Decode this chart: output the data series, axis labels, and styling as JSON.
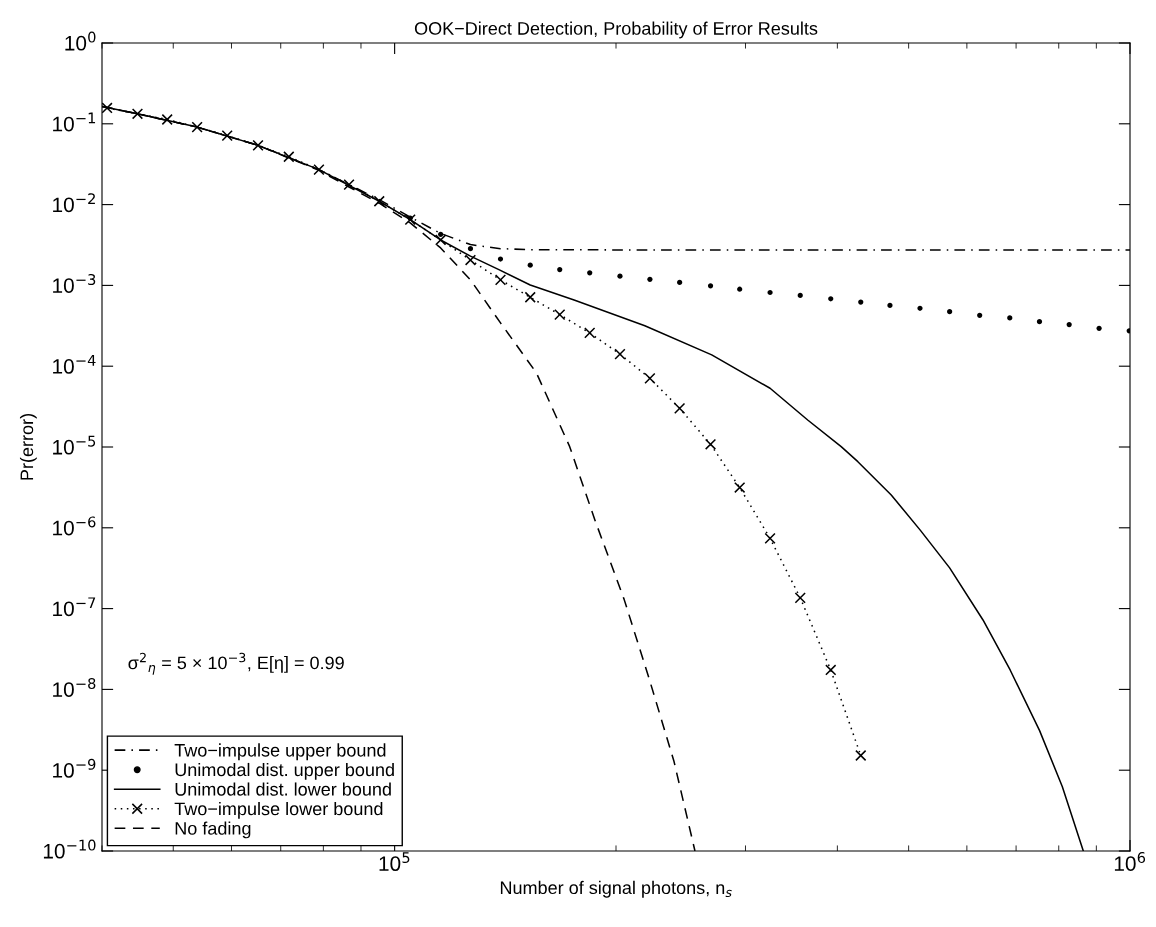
{
  "chart_data": {
    "type": "line",
    "title": "OOK−Direct Detection, Probability of Error Results",
    "xlabel": "Number of signal photons, n$_{s}$",
    "ylabel": "Pr(error)",
    "annotations": [
      "σ$^{2}$$_{η}$ = 5 × 10$^{−3}$, E[η] = 0.99"
    ],
    "log": "xy",
    "grid": false,
    "legend": "lower left",
    "xlim": [
      40000,
      1000000
    ],
    "xticks": [
      {
        "value": 100000,
        "label": "10$^{5}$"
      },
      {
        "value": 1000000,
        "label": "10$^{6}$"
      }
    ],
    "ylim": [
      1e-10,
      1
    ],
    "yticks": [
      {
        "value": 1e-10,
        "label": "10$^{−10}$"
      },
      {
        "value": 1e-09,
        "label": "10$^{−9}$"
      },
      {
        "value": 1e-08,
        "label": "10$^{−8}$"
      },
      {
        "value": 1e-07,
        "label": "10$^{−7}$"
      },
      {
        "value": 1e-06,
        "label": "10$^{−6}$"
      },
      {
        "value": 1e-05,
        "label": "10$^{−5}$"
      },
      {
        "value": 0.0001,
        "label": "10$^{−4}$"
      },
      {
        "value": 0.001,
        "label": "10$^{−3}$"
      },
      {
        "value": 0.01,
        "label": "10$^{−2}$"
      },
      {
        "value": 0.1,
        "label": "10$^{−1}$"
      },
      {
        "value": 1,
        "label": "10$^{0}$"
      }
    ],
    "series": [
      {
        "name": "Two−impulse upper bound",
        "color": "#000000",
        "line_style": "dashdot",
        "marker": "none",
        "x": [
          40000,
          44700,
          53880,
          65200,
          78900,
          95300,
          105000,
          115500,
          126800,
          139300,
          152900,
          200000,
          1000000
        ],
        "values": [
          0.164,
          0.133,
          0.091,
          0.0541,
          0.0271,
          0.0115,
          0.007,
          0.0044,
          0.0032,
          0.00285,
          0.00277,
          0.00275,
          0.00275
        ]
      },
      {
        "name": "Unimodal dist. upper bound",
        "type": "scatter",
        "color": "#000000",
        "marker": "circle",
        "x": [
          105000,
          115500,
          126800,
          139300,
          152900,
          167700,
          184200,
          202500,
          222400,
          244100,
          268900,
          294600,
          324000,
          356100,
          391800,
          430400,
          471600,
          518100,
          568500,
          624600,
          686300,
          753200,
          826600,
          907800,
          997500
        ],
        "values": [
          0.0068,
          0.00429,
          0.00285,
          0.00212,
          0.00178,
          0.00157,
          0.00143,
          0.0013,
          0.00119,
          0.00109,
          0.000989,
          0.000897,
          0.000817,
          0.000752,
          0.000683,
          0.000621,
          0.000565,
          0.000521,
          0.000473,
          0.000426,
          0.000396,
          0.000356,
          0.000327,
          0.000294,
          0.000274
        ]
      },
      {
        "name": "Unimodal dist. lower bound",
        "color": "#000000",
        "line_style": "solid",
        "marker": "none",
        "x": [
          40000,
          44700,
          53880,
          65200,
          78900,
          95300,
          105000,
          115500,
          126800,
          138600,
          152900,
          175400,
          218900,
          269900,
          324000,
          364500,
          404800,
          426500,
          473500,
          518800,
          568500,
          631100,
          687100,
          753200,
          809100,
          864000
        ],
        "values": [
          0.164,
          0.133,
          0.091,
          0.0541,
          0.0271,
          0.011,
          0.00652,
          0.00365,
          0.0023,
          0.00157,
          0.00101,
          0.000659,
          0.000316,
          0.000138,
          5.33e-05,
          2.16e-05,
          1.01e-05,
          6.58e-06,
          2.55e-06,
          9.29e-07,
          3.19e-07,
          7.23e-08,
          1.74e-08,
          3.11e-09,
          6.25e-10,
          1e-10
        ]
      },
      {
        "name": "Two−impulse lower bound",
        "color": "#000000",
        "line_style": "dotted",
        "marker": "cross",
        "x": [
          40640,
          44700,
          49060,
          53880,
          59200,
          65200,
          71800,
          78900,
          86700,
          95300,
          105000,
          115500,
          126800,
          139300,
          152900,
          167700,
          184200,
          202500,
          222400,
          244100,
          268900,
          294600,
          324000,
          356100,
          391800,
          430400
        ],
        "values": [
          0.157,
          0.133,
          0.113,
          0.091,
          0.0713,
          0.0541,
          0.0391,
          0.0271,
          0.0177,
          0.011,
          0.00652,
          0.00365,
          0.00206,
          0.00117,
          0.000713,
          0.000435,
          0.000258,
          0.000141,
          7.08e-05,
          3.01e-05,
          1.08e-05,
          3.15e-06,
          7.41e-07,
          1.36e-07,
          1.74e-08,
          1.52e-09
        ]
      },
      {
        "name": "No fading",
        "color": "#000000",
        "line_style": "dashed",
        "marker": "none",
        "x": [
          40000,
          44700,
          53880,
          65200,
          78900,
          86700,
          95300,
          105000,
          115500,
          126800,
          139300,
          155900,
          173000,
          187200,
          205100,
          221800,
          239900,
          256100
        ],
        "values": [
          0.164,
          0.133,
          0.091,
          0.0541,
          0.0265,
          0.0165,
          0.0104,
          0.00594,
          0.00291,
          0.00117,
          0.000344,
          8.26e-05,
          1.01e-05,
          1.25e-06,
          1.31e-07,
          1.37e-08,
          1.27e-09,
          1e-10
        ]
      }
    ]
  }
}
